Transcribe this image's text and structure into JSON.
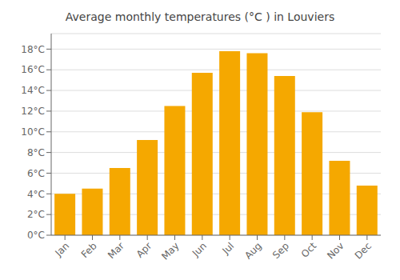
{
  "chart_data": {
    "type": "bar",
    "title": "Average monthly temperatures (°C ) in Louviers",
    "categories": [
      "Jan",
      "Feb",
      "Mar",
      "Apr",
      "May",
      "Jun",
      "Jul",
      "Aug",
      "Sep",
      "Oct",
      "Nov",
      "Dec"
    ],
    "values": [
      4.0,
      4.5,
      6.5,
      9.2,
      12.5,
      15.7,
      17.8,
      17.6,
      15.4,
      11.9,
      7.2,
      4.8
    ],
    "color": "#F5A800",
    "ylim": [
      0,
      19.5
    ],
    "yticks": [
      {
        "value": 0,
        "label": "0°C"
      },
      {
        "value": 2,
        "label": "2°C"
      },
      {
        "value": 4,
        "label": "4°C"
      },
      {
        "value": 6,
        "label": "6°C"
      },
      {
        "value": 8,
        "label": "8°C"
      },
      {
        "value": 10,
        "label": "10°C"
      },
      {
        "value": 12,
        "label": "12°C"
      },
      {
        "value": 14,
        "label": "14°C"
      },
      {
        "value": 16,
        "label": "16°C"
      },
      {
        "value": 18,
        "label": "18°C"
      }
    ],
    "grid": true
  }
}
